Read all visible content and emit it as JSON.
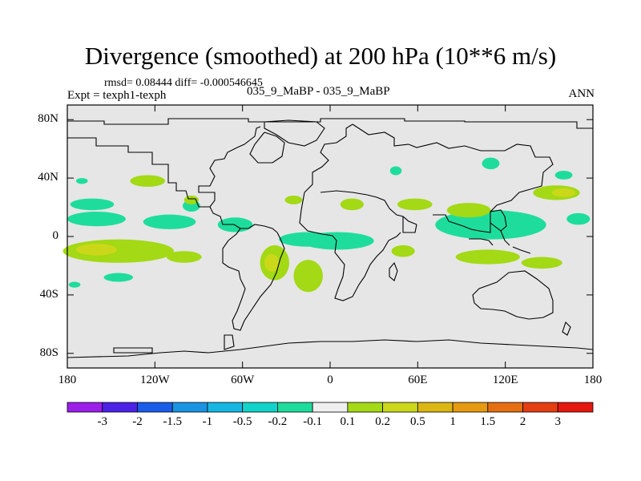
{
  "title": "Divergence (smoothed) at 200 hPa (10**6 m/s)",
  "stats": "rmsd= 0.08444  diff= -0.000546645",
  "experiment": "Expt = texph1-texph",
  "case": "035_9_MaBP - 035_9_MaBP",
  "period": "ANN",
  "map": {
    "lon_range": [
      -180,
      180
    ],
    "lat_range": [
      -90,
      90
    ],
    "background_color": "#e6e6e6",
    "y_ticks": [
      {
        "lat": 80,
        "label": "80N"
      },
      {
        "lat": 40,
        "label": "40N"
      },
      {
        "lat": 0,
        "label": "0"
      },
      {
        "lat": -40,
        "label": "40S"
      },
      {
        "lat": -80,
        "label": "80S"
      }
    ],
    "x_ticks": [
      {
        "lon": -180,
        "label": "180"
      },
      {
        "lon": -120,
        "label": "120W"
      },
      {
        "lon": -60,
        "label": "60W"
      },
      {
        "lon": 0,
        "label": "0"
      },
      {
        "lon": 60,
        "label": "60E"
      },
      {
        "lon": 120,
        "label": "120E"
      },
      {
        "lon": 180,
        "label": "180"
      }
    ]
  },
  "colorbar": {
    "colors": [
      "#9b1fe8",
      "#4b22e6",
      "#1a5de8",
      "#1b93e3",
      "#16b6e3",
      "#12d3c9",
      "#1edd9c",
      "#efefef",
      "#a3d915",
      "#cbd81a",
      "#dcb713",
      "#e59a11",
      "#e46f12",
      "#e43e12",
      "#e5180f"
    ],
    "labels": [
      "-3",
      "-2",
      "-1.5",
      "-1",
      "-0.5",
      "-0.2",
      "-0.1",
      "0.1",
      "0.2",
      "0.5",
      "1",
      "1.5",
      "2",
      "3"
    ]
  },
  "chart_data": {
    "type": "heatmap",
    "title": "Divergence (smoothed) at 200 hPa (10**6 m/s)",
    "variable_units": "10**6 m/s",
    "contour_levels": [
      -3,
      -2,
      -1.5,
      -1,
      -0.5,
      -0.2,
      -0.1,
      0.1,
      0.2,
      0.5,
      1,
      1.5,
      2,
      3
    ],
    "features": [
      {
        "lon": -125,
        "lat": 38,
        "rx": 12,
        "ry": 4,
        "value": 0.15
      },
      {
        "lon": -170,
        "lat": 38,
        "rx": 4,
        "ry": 2,
        "value": -0.15
      },
      {
        "lon": -163,
        "lat": 22,
        "rx": 15,
        "ry": 4,
        "value": -0.15
      },
      {
        "lon": -95,
        "lat": 21,
        "rx": 6,
        "ry": 4,
        "value": -0.15
      },
      {
        "lon": -95,
        "lat": 25,
        "rx": 5,
        "ry": 3,
        "value": 0.15
      },
      {
        "lon": -160,
        "lat": 12,
        "rx": 20,
        "ry": 5,
        "value": -0.15
      },
      {
        "lon": -110,
        "lat": 10,
        "rx": 18,
        "ry": 5,
        "value": -0.15
      },
      {
        "lon": -65,
        "lat": 8,
        "rx": 12,
        "ry": 5,
        "value": -0.15
      },
      {
        "lon": -145,
        "lat": -10,
        "rx": 38,
        "ry": 8,
        "value": 0.15
      },
      {
        "lon": -160,
        "lat": -9,
        "rx": 14,
        "ry": 4,
        "value": 0.35
      },
      {
        "lon": -100,
        "lat": -14,
        "rx": 12,
        "ry": 4,
        "value": 0.15
      },
      {
        "lon": -145,
        "lat": -28,
        "rx": 10,
        "ry": 3,
        "value": -0.15
      },
      {
        "lon": -175,
        "lat": -33,
        "rx": 4,
        "ry": 2,
        "value": -0.15
      },
      {
        "lon": -25,
        "lat": 25,
        "rx": 6,
        "ry": 3,
        "value": 0.15
      },
      {
        "lon": -15,
        "lat": -2,
        "rx": 20,
        "ry": 5,
        "value": -0.15
      },
      {
        "lon": 5,
        "lat": -3,
        "rx": 25,
        "ry": 6,
        "value": -0.15
      },
      {
        "lon": -38,
        "lat": -18,
        "rx": 10,
        "ry": 12,
        "value": 0.15
      },
      {
        "lon": -40,
        "lat": -18,
        "rx": 5,
        "ry": 6,
        "value": 0.35
      },
      {
        "lon": -15,
        "lat": -27,
        "rx": 10,
        "ry": 11,
        "value": 0.15
      },
      {
        "lon": 15,
        "lat": 22,
        "rx": 8,
        "ry": 4,
        "value": 0.15
      },
      {
        "lon": 58,
        "lat": 22,
        "rx": 12,
        "ry": 4,
        "value": 0.15
      },
      {
        "lon": 45,
        "lat": 45,
        "rx": 4,
        "ry": 3,
        "value": -0.15
      },
      {
        "lon": 110,
        "lat": 8,
        "rx": 38,
        "ry": 10,
        "value": -0.15
      },
      {
        "lon": 95,
        "lat": 18,
        "rx": 15,
        "ry": 5,
        "value": 0.15
      },
      {
        "lon": 155,
        "lat": 30,
        "rx": 16,
        "ry": 5,
        "value": 0.15
      },
      {
        "lon": 160,
        "lat": 30,
        "rx": 8,
        "ry": 3,
        "value": 0.35
      },
      {
        "lon": 108,
        "lat": -14,
        "rx": 22,
        "ry": 5,
        "value": 0.15
      },
      {
        "lon": 145,
        "lat": -18,
        "rx": 14,
        "ry": 4,
        "value": 0.15
      },
      {
        "lon": 50,
        "lat": -10,
        "rx": 8,
        "ry": 4,
        "value": 0.15
      },
      {
        "lon": 170,
        "lat": 12,
        "rx": 8,
        "ry": 4,
        "value": -0.15
      },
      {
        "lon": 160,
        "lat": 42,
        "rx": 6,
        "ry": 3,
        "value": -0.15
      },
      {
        "lon": 110,
        "lat": 50,
        "rx": 6,
        "ry": 4,
        "value": -0.15
      }
    ]
  }
}
